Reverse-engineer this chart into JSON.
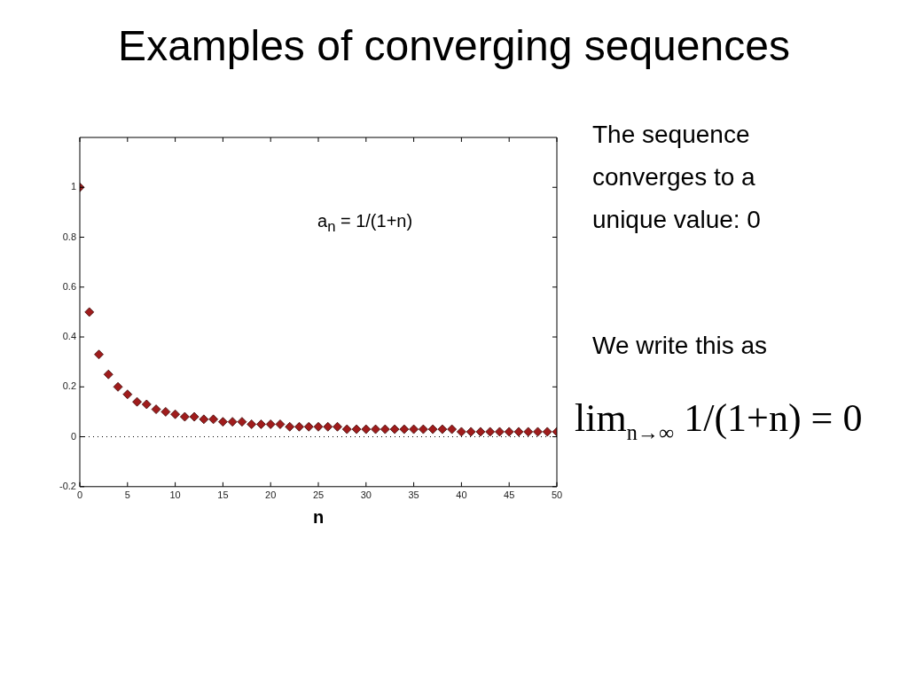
{
  "chart_data": {
    "type": "scatter",
    "title": "Examples of converging sequences",
    "xlabel": "n",
    "annotations": [
      "a$_{n}$ = 1/(1+n)",
      "The sequence converges to a unique value: 0",
      "We write this as",
      "lim$_{n→∞}$ 1/(1+n) = 0"
    ],
    "x": [
      0,
      1,
      2,
      3,
      4,
      5,
      6,
      7,
      8,
      9,
      10,
      11,
      12,
      13,
      14,
      15,
      16,
      17,
      18,
      19,
      20,
      21,
      22,
      23,
      24,
      25,
      26,
      27,
      28,
      29,
      30,
      31,
      32,
      33,
      34,
      35,
      36,
      37,
      38,
      39,
      40,
      41,
      42,
      43,
      44,
      45,
      46,
      47,
      48,
      49,
      50
    ],
    "values": [
      1,
      0.5,
      0.33,
      0.25,
      0.2,
      0.17,
      0.14,
      0.13,
      0.11,
      0.1,
      0.09,
      0.08,
      0.08,
      0.07,
      0.07,
      0.06,
      0.06,
      0.06,
      0.05,
      0.05,
      0.05,
      0.05,
      0.04,
      0.04,
      0.04,
      0.04,
      0.04,
      0.04,
      0.03,
      0.03,
      0.03,
      0.03,
      0.03,
      0.03,
      0.03,
      0.03,
      0.03,
      0.03,
      0.03,
      0.03,
      0.02,
      0.02,
      0.02,
      0.02,
      0.02,
      0.02,
      0.02,
      0.02,
      0.02,
      0.02,
      0.02
    ],
    "color": "#a01c1c",
    "marker": "diamond",
    "grid": false,
    "legend": false,
    "xlim": [
      0,
      50
    ],
    "xticks": [
      0,
      5,
      10,
      15,
      20,
      25,
      30,
      35,
      40,
      45,
      50
    ],
    "ylim": [
      -0.2,
      1.2
    ],
    "yticks": [
      -0.2,
      0,
      0.2,
      0.4,
      0.6,
      0.8,
      1
    ],
    "ref_lines": [
      {
        "axis": "y",
        "value": 0,
        "color": "#000000",
        "line_style": "dotted"
      }
    ]
  }
}
